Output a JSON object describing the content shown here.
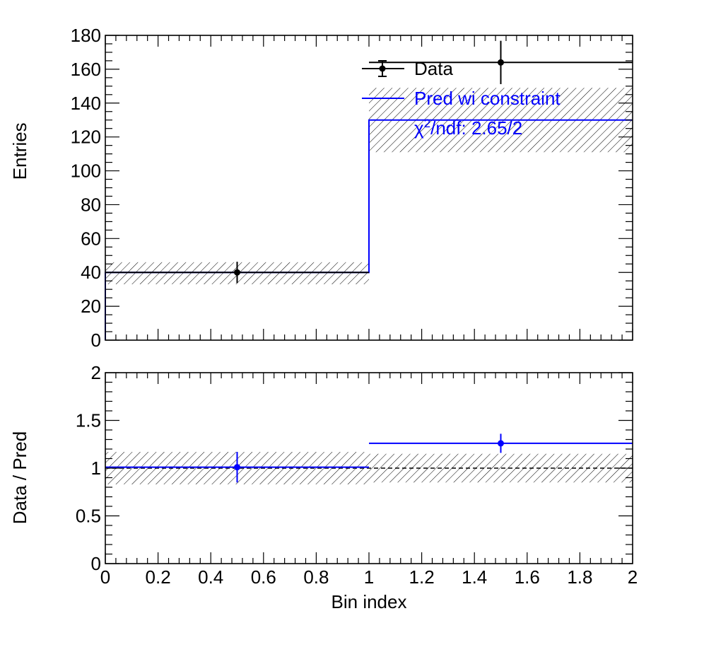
{
  "chart_data": [
    {
      "type": "histogram",
      "panel": "main",
      "ylabel": "Entries",
      "xlim": [
        0,
        2
      ],
      "ylim": [
        0,
        180
      ],
      "y_ticks": [
        "0",
        "20",
        "40",
        "60",
        "80",
        "100",
        "120",
        "140",
        "160",
        "180"
      ],
      "bin_edges": [
        0,
        1,
        2
      ],
      "series": [
        {
          "name": "Data",
          "style": "points",
          "color": "#000000",
          "x": [
            0.5,
            1.5
          ],
          "y": [
            40,
            164
          ],
          "yerr": [
            6.3,
            12.8
          ]
        },
        {
          "name": "Pred wi constraint",
          "style": "step",
          "color": "#0000ff",
          "values": [
            40,
            130
          ],
          "uncertainty_band": [
            [
              33,
              46
            ],
            [
              111,
              149
            ]
          ]
        }
      ],
      "legend": {
        "position": "top-right",
        "entries": [
          "Data",
          "Pred wi constraint"
        ],
        "annotation_prefix": "χ",
        "annotation_sup": "2",
        "annotation_rest": "/ndf: 2.65/2"
      }
    },
    {
      "type": "ratio",
      "panel": "ratio",
      "xlabel": "Bin index",
      "ylabel": "Data / Pred",
      "xlim": [
        0,
        2
      ],
      "ylim": [
        0,
        2
      ],
      "x_ticks": [
        "0",
        "0.2",
        "0.4",
        "0.6",
        "0.8",
        "1",
        "1.2",
        "1.4",
        "1.6",
        "1.8",
        "2"
      ],
      "y_ticks": [
        "0",
        "0.5",
        "1",
        "1.5",
        "2"
      ],
      "reference_line": 1,
      "series": [
        {
          "name": "Data / Pred",
          "color": "#0000ff",
          "x": [
            0.5,
            1.5
          ],
          "y": [
            1.01,
            1.26
          ],
          "yerr": [
            0.16,
            0.1
          ],
          "uncertainty_band": [
            [
              0.83,
              1.17
            ],
            [
              0.85,
              1.15
            ]
          ]
        }
      ]
    }
  ]
}
